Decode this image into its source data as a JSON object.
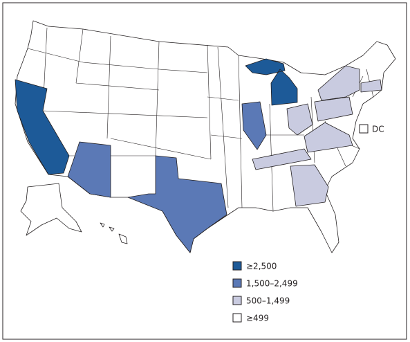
{
  "map": {
    "legend": [
      {
        "label": "≥2,500",
        "color": "#1d5a98"
      },
      {
        "label": "1,500–2,499",
        "color": "#5b79b6"
      },
      {
        "label": "500–1,499",
        "color": "#c9cbe0"
      },
      {
        "label": "≥499",
        "color": "#ffffff"
      }
    ],
    "dc_label": "DC"
  }
}
